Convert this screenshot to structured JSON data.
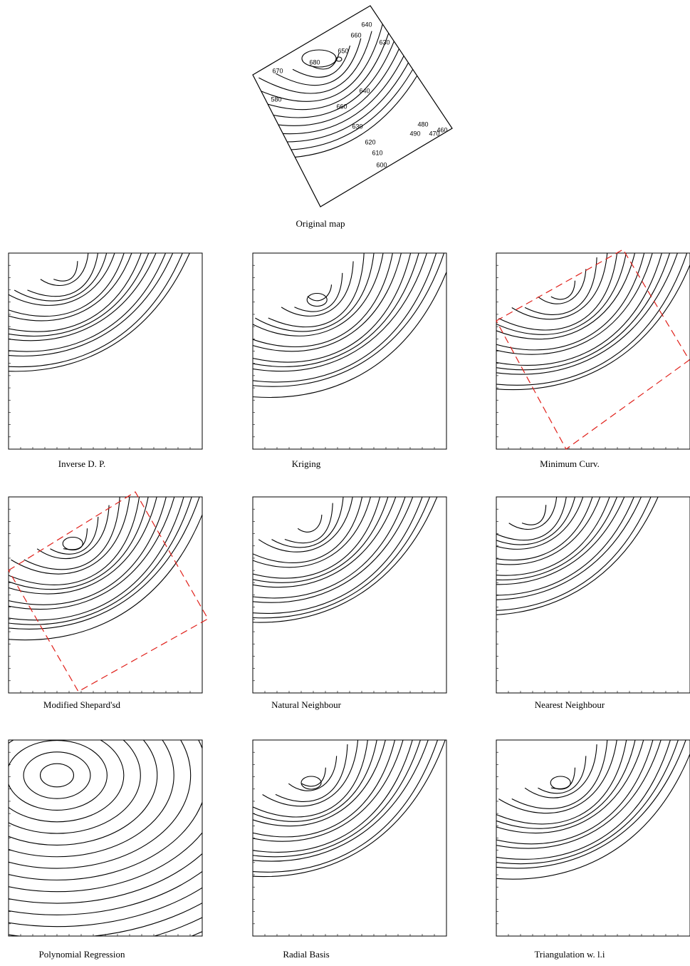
{
  "original": {
    "caption": "Original map",
    "labels": [
      "670",
      "680",
      "650",
      "660",
      "640",
      "630",
      "580",
      "660",
      "640",
      "630",
      "620",
      "610",
      "600",
      "490",
      "480",
      "470",
      "460"
    ]
  },
  "panels": [
    {
      "caption": "Inverse D. P."
    },
    {
      "caption": "Kriging"
    },
    {
      "caption": "Minimum Curv."
    },
    {
      "caption": "Modified Shepard'sd"
    },
    {
      "caption": "Natural Neighbour"
    },
    {
      "caption": "Nearest Neighbour"
    },
    {
      "caption": "Polynomial Regression"
    },
    {
      "caption": "Radial Basis"
    },
    {
      "caption": "Triangulation w. l.i"
    }
  ]
}
